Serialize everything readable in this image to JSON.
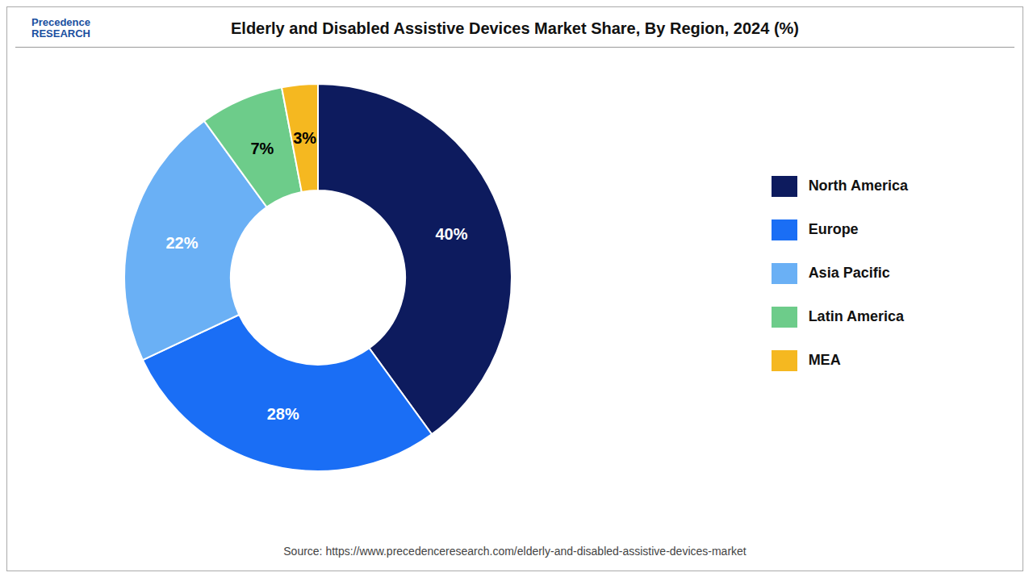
{
  "chart_data": {
    "type": "pie",
    "title": "Elderly and Disabled Assistive Devices Market Share, By Region, 2024 (%)",
    "categories": [
      "North America",
      "Europe",
      "Asia Pacific",
      "Latin America",
      "MEA"
    ],
    "values": [
      40,
      28,
      22,
      7,
      3
    ],
    "value_labels": [
      "40%",
      "28%",
      "22%",
      "7%",
      "3%"
    ],
    "colors": [
      "#0d1b5e",
      "#1a6ef5",
      "#6ab0f5",
      "#6dcc8a",
      "#f5b820"
    ],
    "data_labels": true,
    "legend": "right",
    "annotations": [
      "Precedence\nRESEARCH",
      "Source: https://www.precedenceresearch.com/elderly-and-disabled-assistive-devices-market"
    ]
  }
}
